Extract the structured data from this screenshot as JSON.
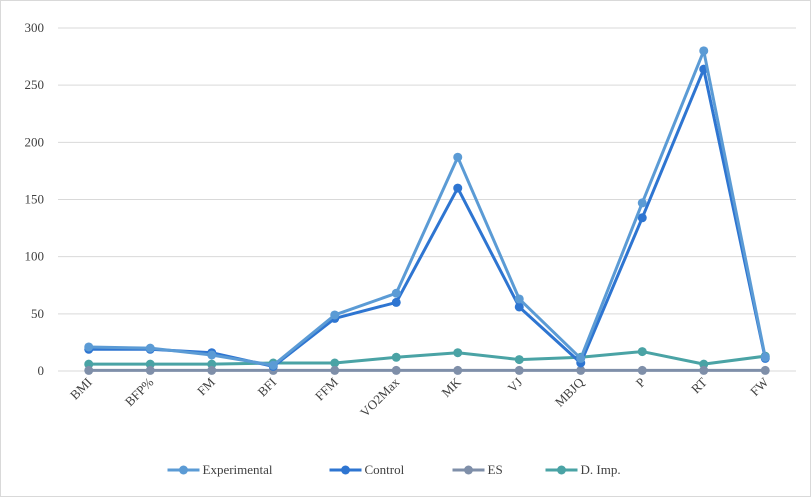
{
  "chart_data": {
    "type": "line",
    "title": "",
    "xlabel": "",
    "ylabel": "",
    "categories": [
      "BMI",
      "BFP%",
      "FM",
      "BFI",
      "FFM",
      "VO2Max",
      "MK",
      "VJ",
      "MBJQ",
      "P",
      "RT",
      "FW"
    ],
    "ylim": [
      0,
      300
    ],
    "yticks": [
      0,
      50,
      100,
      150,
      200,
      250,
      300
    ],
    "grid": true,
    "legend_position": "bottom",
    "series": [
      {
        "name": "Experimental",
        "color": "#5b9bd5",
        "values": [
          21,
          20,
          14,
          5,
          49,
          68,
          187,
          63,
          11,
          147,
          280,
          12
        ]
      },
      {
        "name": "Control",
        "color": "#2e75d1",
        "values": [
          19,
          19,
          16,
          4,
          46,
          60,
          160,
          56,
          7,
          134,
          264,
          11
        ]
      },
      {
        "name": "ES",
        "color": "#7f8fa9",
        "values": [
          0.5,
          0.5,
          0.5,
          0.5,
          0.5,
          0.5,
          0.5,
          0.5,
          0.5,
          0.5,
          0.5,
          0.5
        ]
      },
      {
        "name": "D. Imp.",
        "color": "#4aa3a5",
        "values": [
          6,
          6,
          6,
          7,
          7,
          12,
          16,
          10,
          12,
          17,
          6,
          13
        ]
      }
    ]
  }
}
